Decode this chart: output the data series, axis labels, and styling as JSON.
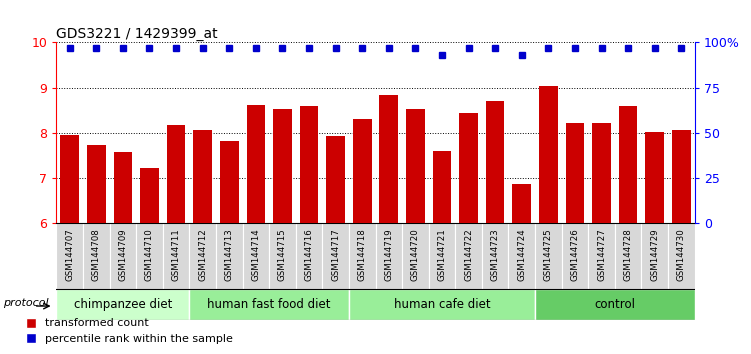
{
  "title": "GDS3221 / 1429399_at",
  "samples": [
    "GSM144707",
    "GSM144708",
    "GSM144709",
    "GSM144710",
    "GSM144711",
    "GSM144712",
    "GSM144713",
    "GSM144714",
    "GSM144715",
    "GSM144716",
    "GSM144717",
    "GSM144718",
    "GSM144719",
    "GSM144720",
    "GSM144721",
    "GSM144722",
    "GSM144723",
    "GSM144724",
    "GSM144725",
    "GSM144726",
    "GSM144727",
    "GSM144728",
    "GSM144729",
    "GSM144730"
  ],
  "bar_values": [
    7.95,
    7.73,
    7.57,
    7.22,
    8.18,
    8.07,
    7.82,
    8.62,
    8.52,
    8.6,
    7.93,
    8.3,
    8.84,
    8.52,
    7.6,
    8.43,
    8.7,
    6.87,
    9.03,
    8.22,
    8.22,
    8.6,
    8.02,
    8.07
  ],
  "percentile_values": [
    97,
    97,
    97,
    97,
    97,
    97,
    97,
    97,
    97,
    97,
    97,
    97,
    97,
    97,
    93,
    97,
    97,
    93,
    97,
    97,
    97,
    97,
    97,
    97
  ],
  "bar_color": "#cc0000",
  "dot_color": "#0000cc",
  "ylim_left": [
    6,
    10
  ],
  "ylim_right": [
    0,
    100
  ],
  "yticks_left": [
    6,
    7,
    8,
    9,
    10
  ],
  "yticks_right": [
    0,
    25,
    50,
    75,
    100
  ],
  "group_defs": [
    {
      "label": "chimpanzee diet",
      "start": 0,
      "end": 5,
      "color": "#ccffcc"
    },
    {
      "label": "human fast food diet",
      "start": 5,
      "end": 11,
      "color": "#99ee99"
    },
    {
      "label": "human cafe diet",
      "start": 11,
      "end": 18,
      "color": "#99ee99"
    },
    {
      "label": "control",
      "start": 18,
      "end": 24,
      "color": "#66cc66"
    }
  ],
  "legend_bar_label": "transformed count",
  "legend_dot_label": "percentile rank within the sample",
  "protocol_label": "protocol"
}
